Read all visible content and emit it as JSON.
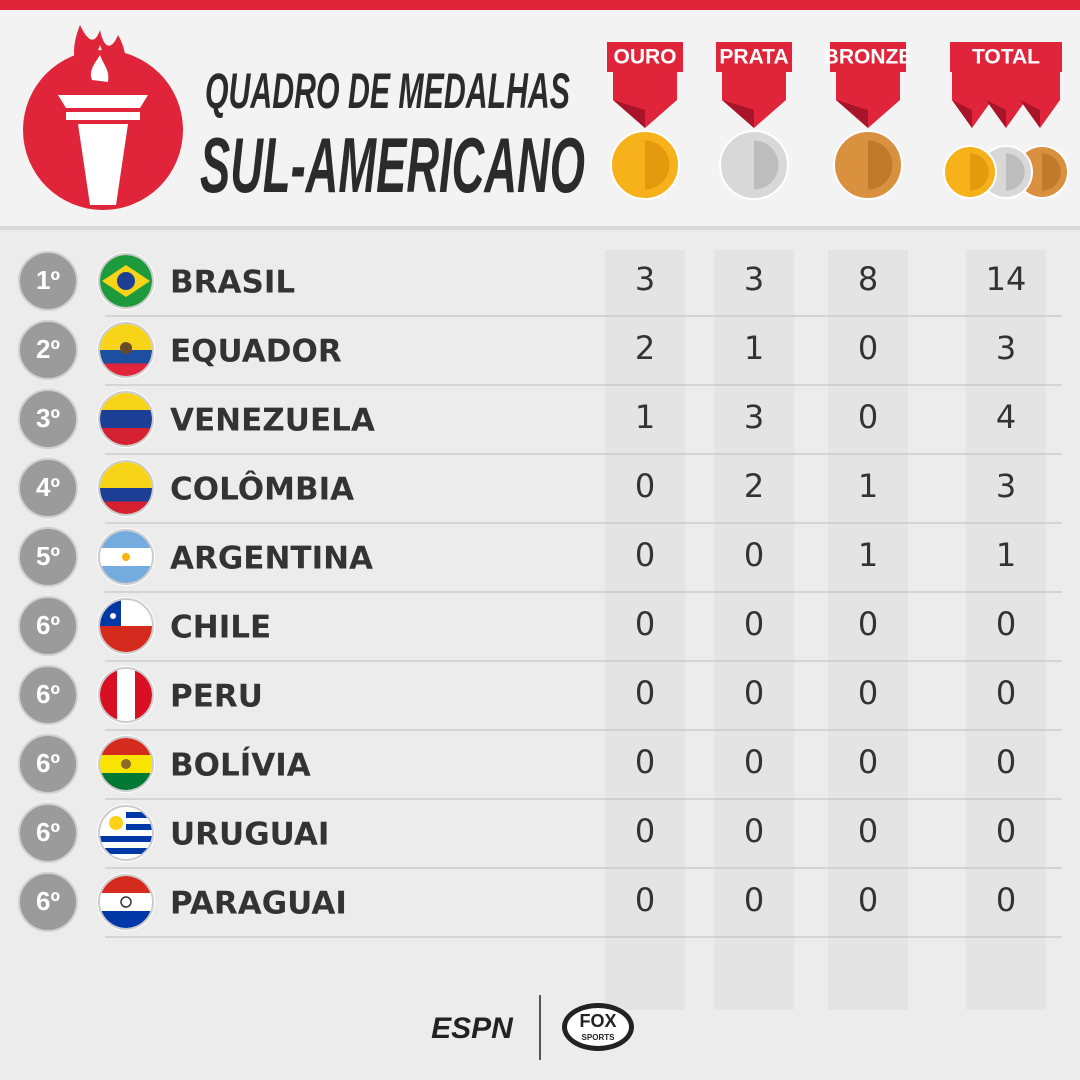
{
  "header": {
    "title_line1": "QUADRO DE MEDALHAS",
    "title_line2": "SUL-AMERICANO"
  },
  "columns": [
    "OURO",
    "PRATA",
    "BRONZE",
    "TOTAL"
  ],
  "rows": [
    {
      "rank": "1º",
      "country": "BRASIL",
      "medals": [
        3,
        3,
        8,
        14
      ]
    },
    {
      "rank": "2º",
      "country": "EQUADOR",
      "medals": [
        2,
        1,
        0,
        3
      ]
    },
    {
      "rank": "3º",
      "country": "VENEZUELA",
      "medals": [
        1,
        3,
        0,
        4
      ]
    },
    {
      "rank": "4º",
      "country": "COLÔMBIA",
      "medals": [
        0,
        2,
        1,
        3
      ]
    },
    {
      "rank": "5º",
      "country": "ARGENTINA",
      "medals": [
        0,
        0,
        1,
        1
      ]
    },
    {
      "rank": "6º",
      "country": "CHILE",
      "medals": [
        0,
        0,
        0,
        0
      ]
    },
    {
      "rank": "6º",
      "country": "PERU",
      "medals": [
        0,
        0,
        0,
        0
      ]
    },
    {
      "rank": "6º",
      "country": "BOLÍVIA",
      "medals": [
        0,
        0,
        0,
        0
      ]
    },
    {
      "rank": "6º",
      "country": "URUGUAI",
      "medals": [
        0,
        0,
        0,
        0
      ]
    },
    {
      "rank": "6º",
      "country": "PARAGUAI",
      "medals": [
        0,
        0,
        0,
        0
      ]
    }
  ],
  "footer": {
    "espn": "ESPN",
    "fox": "FOX",
    "sports": "SPORTS"
  }
}
